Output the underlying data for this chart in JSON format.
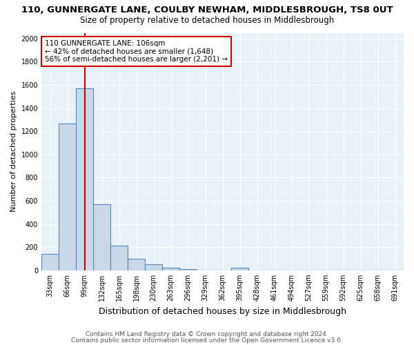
{
  "title1": "110, GUNNERGATE LANE, COULBY NEWHAM, MIDDLESBROUGH, TS8 0UT",
  "title2": "Size of property relative to detached houses in Middlesbrough",
  "xlabel": "Distribution of detached houses by size in Middlesbrough",
  "ylabel": "Number of detached properties",
  "categories": [
    "33sqm",
    "66sqm",
    "99sqm",
    "132sqm",
    "165sqm",
    "198sqm",
    "230sqm",
    "263sqm",
    "296sqm",
    "329sqm",
    "362sqm",
    "395sqm",
    "428sqm",
    "461sqm",
    "494sqm",
    "527sqm",
    "559sqm",
    "592sqm",
    "625sqm",
    "658sqm",
    "691sqm"
  ],
  "bar_values": [
    140,
    1265,
    1570,
    570,
    215,
    98,
    50,
    22,
    10,
    0,
    0,
    20,
    0,
    0,
    0,
    0,
    0,
    0,
    0,
    0,
    0
  ],
  "bar_color": "#c8d8e8",
  "bar_edge_color": "#5588bb",
  "red_line_x": 2,
  "red_line_color": "#cc0000",
  "annotation_text": "110 GUNNERGATE LANE: 106sqm\n← 42% of detached houses are smaller (1,648)\n56% of semi-detached houses are larger (2,201) →",
  "annotation_box_color": "#ffffff",
  "annotation_box_edge": "#cc0000",
  "ylim": [
    0,
    2050
  ],
  "yticks": [
    0,
    200,
    400,
    600,
    800,
    1000,
    1200,
    1400,
    1600,
    1800,
    2000
  ],
  "footer1": "Contains HM Land Registry data © Crown copyright and database right 2024.",
  "footer2": "Contains public sector information licensed under the Open Government Licence v3.0.",
  "background_color": "#e8f0f8",
  "grid_color": "#ffffff",
  "title1_fontsize": 9.5,
  "title2_fontsize": 8.5,
  "xlabel_fontsize": 9,
  "ylabel_fontsize": 8,
  "tick_fontsize": 7,
  "footer_fontsize": 6.5,
  "ann_fontsize": 7.5
}
